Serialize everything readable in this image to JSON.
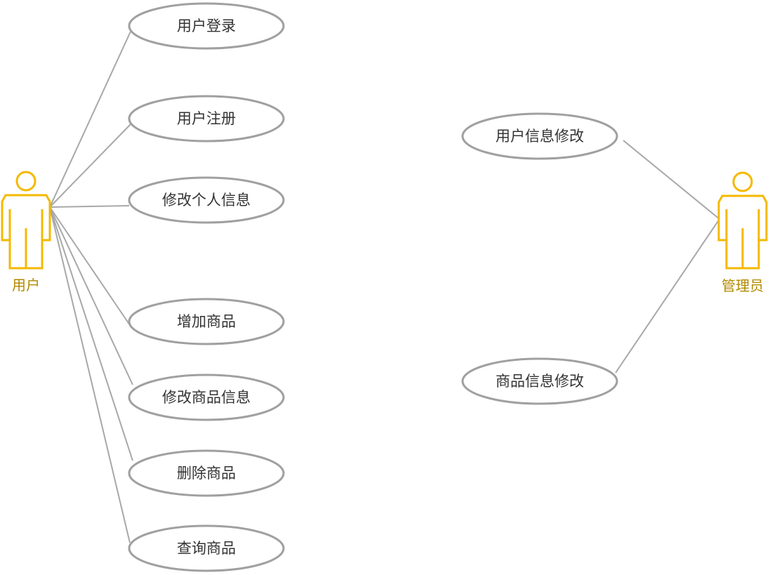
{
  "actors": {
    "user": {
      "label": "用户"
    },
    "admin": {
      "label": "管理员"
    }
  },
  "use_cases": {
    "login": "用户登录",
    "register": "用户注册",
    "edit_profile": "修改个人信息",
    "add_product": "增加商品",
    "edit_product": "修改商品信息",
    "delete_product": "删除商品",
    "query_product": "查询商品",
    "admin_edit_user": "用户信息修改",
    "admin_edit_product": "商品信息修改"
  },
  "colors": {
    "actor_stroke": "#f4b900",
    "actor_label": "#b08a00",
    "use_case_stroke": "#a0a0a0",
    "association_line": "#a8a8a8"
  }
}
